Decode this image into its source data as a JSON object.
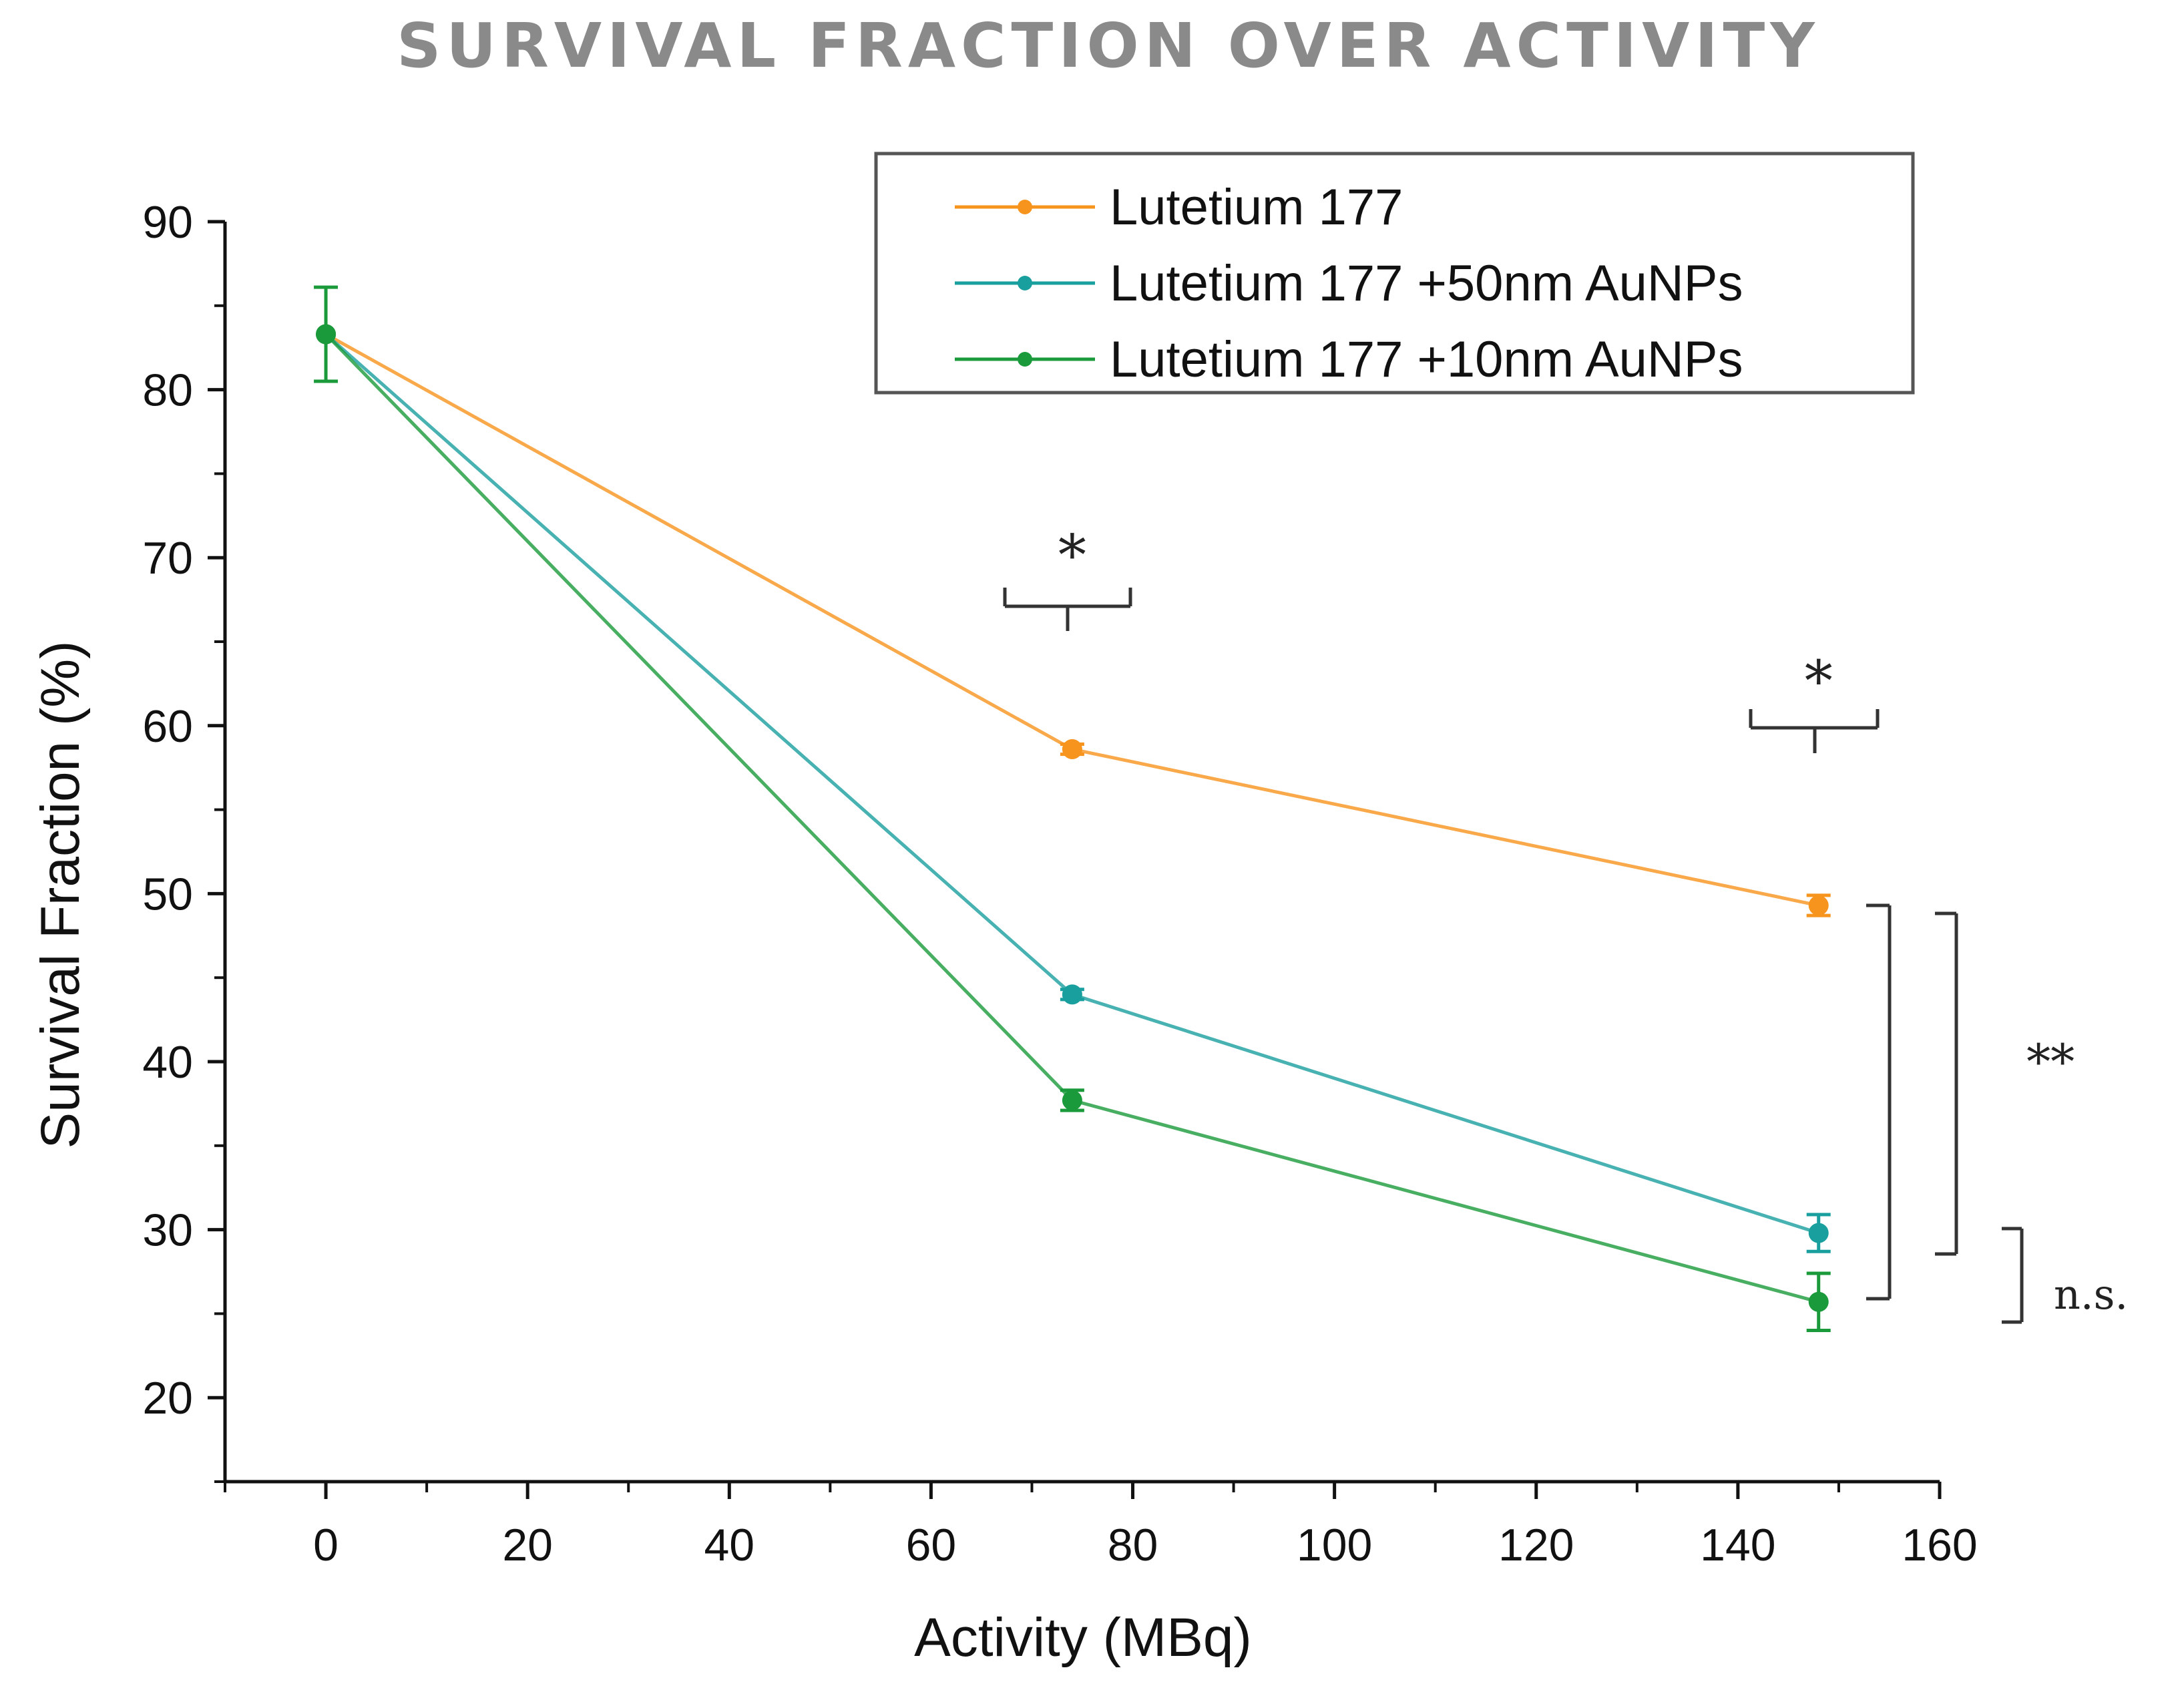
{
  "chart_data": {
    "type": "line",
    "title": "SURVIVAL FRACTION OVER ACTIVITY",
    "xlabel": "Activity (MBq)",
    "ylabel": "Survival Fraction (%)",
    "xlim": [
      -10,
      160
    ],
    "ylim": [
      15,
      90
    ],
    "x_ticks": [
      0,
      20,
      40,
      60,
      80,
      100,
      120,
      140,
      160
    ],
    "y_ticks": [
      20,
      30,
      40,
      50,
      60,
      70,
      80,
      90
    ],
    "legend_position": "top-right",
    "series": [
      {
        "name": "Lutetium 177",
        "color": "#f7941d",
        "x": [
          0,
          74,
          148
        ],
        "y": [
          83.3,
          58.6,
          49.3
        ],
        "err": [
          0.0,
          0.3,
          0.6
        ]
      },
      {
        "name": "Lutetium 177 +50nm AuNPs",
        "color": "#1a9f9f",
        "x": [
          0,
          74,
          148
        ],
        "y": [
          83.3,
          44.0,
          29.8
        ],
        "err": [
          0.0,
          0.3,
          1.1
        ]
      },
      {
        "name": "Lutetium 177 +10nm AuNPs",
        "color": "#1a9a3a",
        "x": [
          0,
          74,
          148
        ],
        "y": [
          83.3,
          37.7,
          25.7
        ],
        "err": [
          2.8,
          0.6,
          1.7
        ]
      }
    ],
    "annotations": [
      {
        "text": "*",
        "x": 74,
        "y": 69
      },
      {
        "text": "*",
        "x": 148,
        "y": 61.5
      },
      {
        "text": "**",
        "x": 171,
        "y": 39
      },
      {
        "text": "n.s.",
        "x": 175,
        "y": 25.3
      }
    ]
  }
}
